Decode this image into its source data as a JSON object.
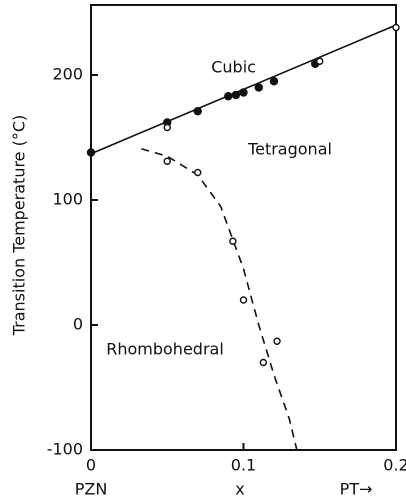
{
  "chart_data": {
    "type": "scatter",
    "y_label": "Transition Temperature (°C)",
    "x_label": "x",
    "x_end_labels": [
      "PZN",
      "PT→"
    ],
    "annotations": [
      "Cubic",
      "Tetragonal",
      "Rhombohedral"
    ],
    "xlim": [
      0,
      0.2
    ],
    "xticks": [
      0,
      0.1,
      0.2
    ],
    "ylim": [
      -100,
      256
    ],
    "yticks": [
      -100,
      0,
      100,
      200
    ],
    "grid": false,
    "series": [
      {
        "color": "#111111",
        "line": "solid",
        "marker": "none",
        "x": [
          0,
          0.2
        ],
        "values": [
          137,
          240
        ]
      },
      {
        "color": "#111111",
        "line": "dashed",
        "marker": "none",
        "x": [
          0.033,
          0.05,
          0.07,
          0.085,
          0.1,
          0.11,
          0.12,
          0.13,
          0.135
        ],
        "values": [
          141,
          135,
          120,
          95,
          45,
          0,
          -40,
          -75,
          -100
        ]
      },
      {
        "color": "#111111",
        "line": "none",
        "marker": "filled",
        "x": [
          0,
          0.05,
          0.07,
          0.09,
          0.095,
          0.1,
          0.11,
          0.12,
          0.147
        ],
        "values": [
          138,
          162,
          171,
          183,
          184,
          186,
          190,
          195,
          209
        ]
      },
      {
        "color": "#111111",
        "line": "none",
        "marker": "open",
        "x": [
          0.05,
          0.15,
          0.2
        ],
        "values": [
          158,
          211,
          238
        ]
      },
      {
        "color": "#111111",
        "line": "none",
        "marker": "open",
        "x": [
          0.05,
          0.07,
          0.093,
          0.1,
          0.113,
          0.122
        ],
        "values": [
          131,
          122,
          67,
          20,
          -30,
          -13
        ]
      }
    ]
  }
}
